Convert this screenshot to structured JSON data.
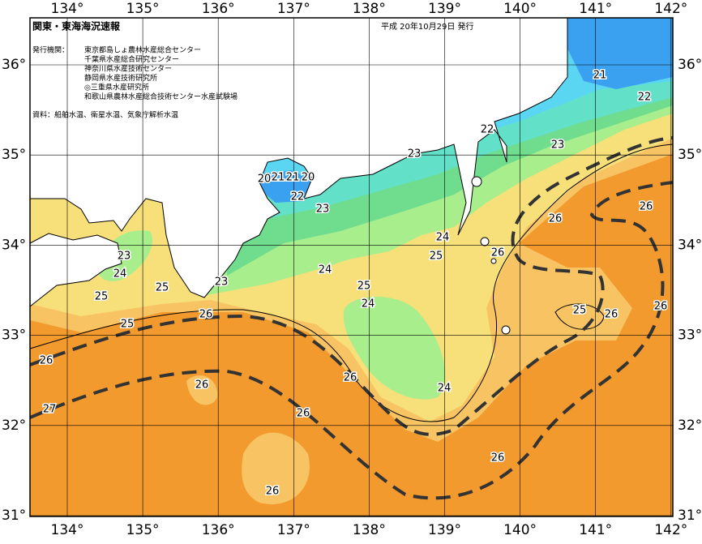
{
  "header": {
    "title": "関東・東海海況速報",
    "date": "平成 20年10月29日 発行",
    "issuers_label": "発行機関：",
    "issuers": [
      "東京都島しょ農林水産総合センター",
      "千葉県水産総合研究センター",
      "神奈川県水産技術センター",
      "静岡県水産技術研究所",
      "◎三重県水産研究所",
      "和歌山県農林水産総合技術センター水産試験場"
    ],
    "source": "資料：船舶水温、衛星水温、気象庁解析水温"
  },
  "axes": {
    "longitudes": [
      "134°",
      "135°",
      "136°",
      "137°",
      "138°",
      "139°",
      "140°",
      "141°",
      "142°"
    ],
    "latitudes": [
      "36°",
      "35°",
      "34°",
      "33°",
      "32°",
      "31°"
    ]
  },
  "contour_labels": [
    "21",
    "22",
    "22",
    "23",
    "23",
    "20",
    "21",
    "21",
    "20",
    "22",
    "23",
    "24",
    "25",
    "26",
    "26",
    "26",
    "23",
    "24",
    "25",
    "25",
    "23",
    "24",
    "25",
    "24",
    "26",
    "25",
    "26",
    "25",
    "26",
    "26",
    "26",
    "24",
    "26",
    "27",
    "26",
    "26",
    "26"
  ]
}
